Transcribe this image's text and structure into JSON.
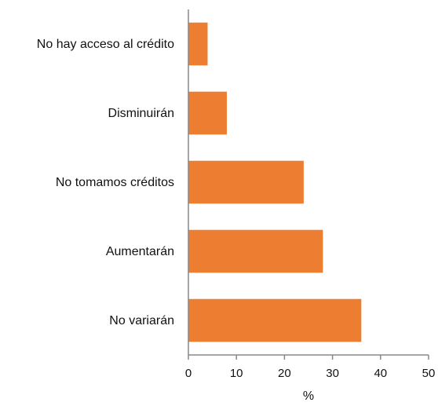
{
  "chart_data": {
    "type": "bar",
    "orientation": "horizontal",
    "categories": [
      "No hay acceso al crédito",
      "Disminuirán",
      "No tomamos créditos",
      "Aumentarán",
      "No variarán"
    ],
    "values": [
      4,
      8,
      24,
      28,
      36
    ],
    "xlabel": "%",
    "xlim": [
      0,
      50
    ],
    "xticks": [
      "0",
      "10",
      "20",
      "30",
      "40",
      "50"
    ],
    "grid": false,
    "legend": "none",
    "bar_color": "#ED7D31"
  }
}
